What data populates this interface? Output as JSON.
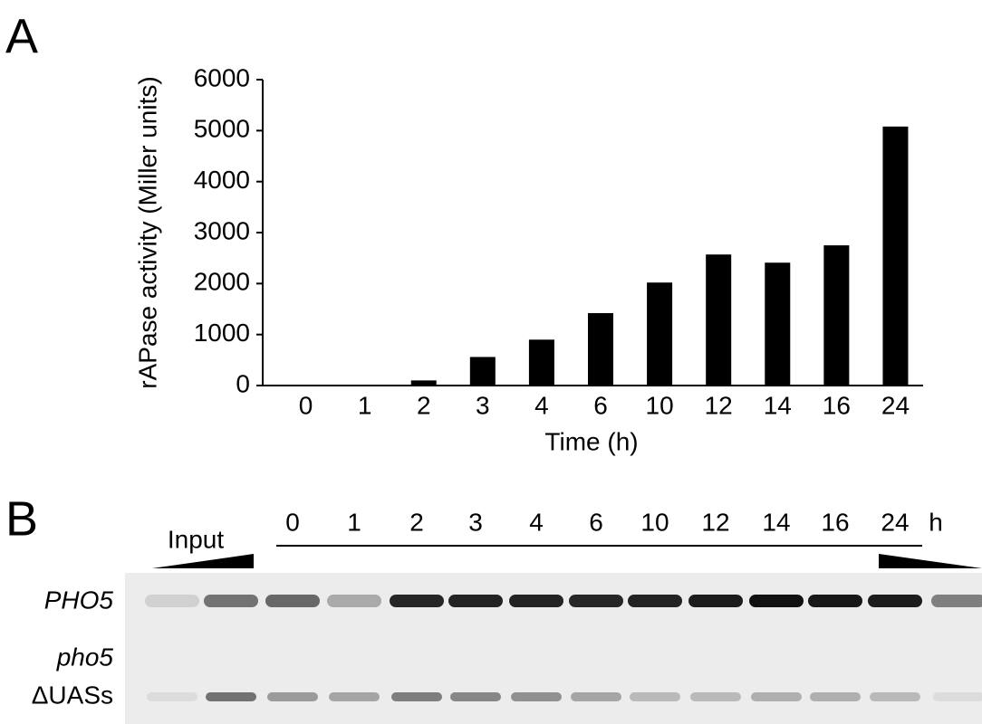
{
  "chart_data": {
    "type": "bar",
    "panel_label": "A",
    "y_label": "rAPase activity (Miller units)",
    "x_label": "Time (h)",
    "categories": [
      "0",
      "1",
      "2",
      "3",
      "4",
      "6",
      "10",
      "12",
      "14",
      "16",
      "24"
    ],
    "values": [
      0,
      0,
      100,
      560,
      900,
      1420,
      2020,
      2570,
      2410,
      2750,
      5080
    ],
    "color": "#000000",
    "ylim": [
      0,
      6000
    ],
    "yticks": [
      0,
      1000,
      2000,
      3000,
      4000,
      5000,
      6000
    ],
    "grid": false
  },
  "panel_b": {
    "panel_label": "B",
    "input_label": "Input",
    "lanes": [
      "0",
      "1",
      "2",
      "3",
      "4",
      "6",
      "10",
      "12",
      "14",
      "16",
      "24"
    ],
    "unit": "h",
    "rows": [
      {
        "label": "PHO5"
      },
      {
        "label": "pho5",
        "sublabel": "ΔUASs"
      }
    ]
  }
}
